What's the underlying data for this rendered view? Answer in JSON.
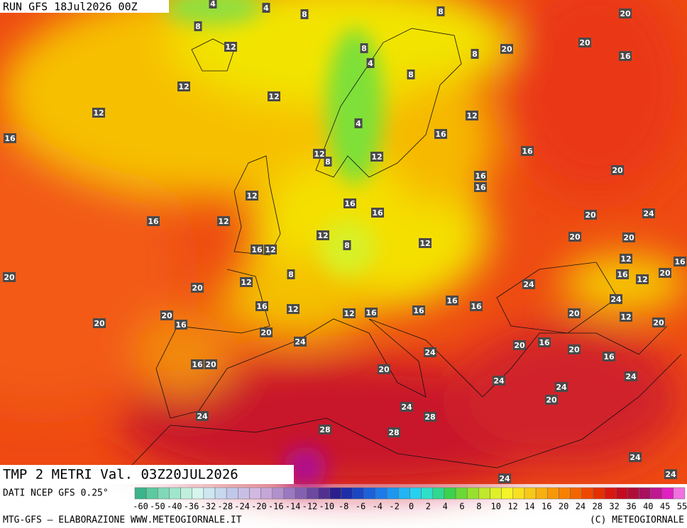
{
  "header": {
    "run": "RUN GFS 18Jul2026 00Z",
    "title": "TMP 2 METRI Val. 03Z20JUL2026"
  },
  "contour_labels": [
    4,
    4,
    8,
    8,
    20,
    8,
    12,
    8,
    8,
    20,
    20,
    16,
    4,
    8,
    12,
    12,
    12,
    12,
    4,
    16,
    16,
    16,
    12,
    8,
    12,
    20,
    16,
    16,
    12,
    16,
    16,
    20,
    24,
    16,
    12,
    12,
    8,
    20,
    20,
    12,
    16,
    12,
    12,
    16,
    16,
    20,
    8,
    20,
    12,
    12,
    24,
    20,
    24,
    16,
    16,
    16,
    12,
    12,
    16,
    16,
    20,
    12,
    20,
    16,
    20,
    20,
    20,
    24,
    16,
    20,
    24,
    20,
    16,
    16,
    20,
    20,
    24,
    24,
    24,
    20,
    24,
    28,
    24,
    28,
    28,
    24,
    24,
    24
  ],
  "legend": {
    "source": "DATI NCEP GFS 0.25°",
    "colors": [
      "#3cb38b",
      "#5cc9a0",
      "#7fd9b8",
      "#a0e6cc",
      "#c0f0dd",
      "#d6f5ec",
      "#cde6f0",
      "#c7d7ee",
      "#c2c8ea",
      "#c9bfe6",
      "#d2b8e2",
      "#c6a6d8",
      "#b290cc",
      "#9c78c0",
      "#8660b0",
      "#6c48a0",
      "#533090",
      "#2a1f8c",
      "#1d2ea8",
      "#1a46c4",
      "#1c60da",
      "#1e7ae8",
      "#1e96f0",
      "#22b4f4",
      "#28d0f0",
      "#2ee0c8",
      "#30d890",
      "#3cd24c",
      "#6cd836",
      "#98e030",
      "#c0e82c",
      "#e0f028",
      "#f6f428",
      "#f8e020",
      "#f8c818",
      "#f8b010",
      "#f89808",
      "#f88000",
      "#f46400",
      "#ee4800",
      "#e43000",
      "#d81810",
      "#c40c20",
      "#b00c38",
      "#a81060",
      "#c01890",
      "#e020c0",
      "#f070e0"
    ],
    "labels": [
      -60,
      -50,
      -40,
      -36,
      -32,
      -28,
      -24,
      -20,
      -16,
      -14,
      -12,
      -10,
      -8,
      -6,
      -4,
      -2,
      0,
      2,
      4,
      6,
      8,
      10,
      12,
      14,
      16,
      20,
      24,
      28,
      32,
      36,
      40,
      45,
      55
    ]
  },
  "footer": {
    "left": "MTG-GFS – ELABORAZIONE WWW.METEOGIORNALE.IT",
    "right": "(C) METEOGIORNALE"
  }
}
